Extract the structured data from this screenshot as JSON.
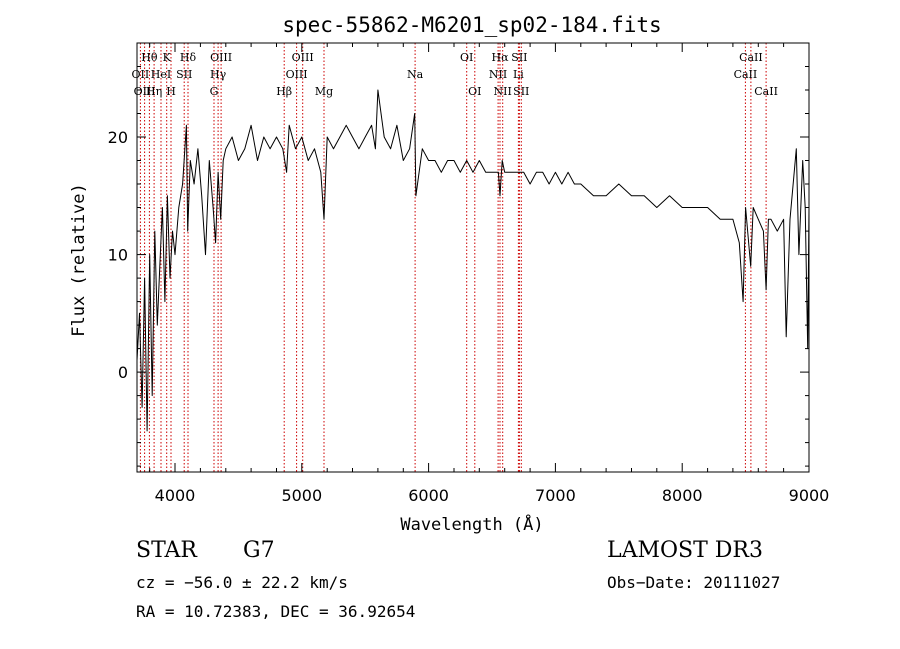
{
  "chart_data": {
    "type": "line",
    "title": "spec-55862-M6201_sp02-184.fits",
    "xlabel": "Wavelength (Å)",
    "ylabel": "Flux (relative)",
    "xlim": [
      3700,
      9000
    ],
    "ylim": [
      -8.5,
      28
    ],
    "x_ticks": [
      4000,
      5000,
      6000,
      7000,
      8000,
      9000
    ],
    "y_ticks": [
      0,
      10,
      20
    ],
    "series": [
      {
        "name": "flux",
        "x": [
          3700,
          3720,
          3740,
          3760,
          3780,
          3800,
          3820,
          3840,
          3860,
          3880,
          3900,
          3920,
          3940,
          3960,
          3980,
          4000,
          4030,
          4060,
          4090,
          4100,
          4120,
          4150,
          4180,
          4210,
          4240,
          4270,
          4300,
          4320,
          4340,
          4360,
          4380,
          4400,
          4450,
          4500,
          4550,
          4600,
          4650,
          4700,
          4750,
          4800,
          4850,
          4880,
          4900,
          4950,
          5000,
          5050,
          5100,
          5150,
          5175,
          5200,
          5250,
          5300,
          5350,
          5400,
          5450,
          5500,
          5550,
          5580,
          5600,
          5650,
          5700,
          5750,
          5800,
          5850,
          5890,
          5900,
          5950,
          6000,
          6050,
          6100,
          6150,
          6200,
          6250,
          6300,
          6350,
          6400,
          6450,
          6500,
          6550,
          6563,
          6580,
          6600,
          6650,
          6700,
          6750,
          6800,
          6850,
          6900,
          6950,
          7000,
          7050,
          7100,
          7150,
          7200,
          7300,
          7400,
          7500,
          7600,
          7700,
          7800,
          7900,
          8000,
          8100,
          8200,
          8300,
          8400,
          8450,
          8480,
          8500,
          8540,
          8560,
          8600,
          8640,
          8662,
          8680,
          8700,
          8750,
          8800,
          8820,
          8850,
          8900,
          8920,
          8950,
          8970,
          8990,
          9000
        ],
        "y": [
          1,
          5,
          -3,
          8,
          -5,
          10,
          -2,
          12,
          4,
          9,
          14,
          6,
          15,
          8,
          12,
          10,
          14,
          16,
          21,
          12,
          18,
          16,
          19,
          15,
          10,
          18,
          14,
          11,
          17,
          13,
          18,
          19,
          20,
          18,
          19,
          21,
          18,
          20,
          19,
          20,
          19,
          17,
          21,
          19,
          20,
          18,
          19,
          17,
          13,
          20,
          19,
          20,
          21,
          20,
          19,
          20,
          21,
          19,
          24,
          20,
          19,
          21,
          18,
          19,
          22,
          15,
          19,
          18,
          18,
          17,
          18,
          18,
          17,
          18,
          17,
          18,
          17,
          17,
          17,
          15,
          18,
          17,
          17,
          17,
          17,
          16,
          17,
          17,
          16,
          17,
          16,
          17,
          16,
          16,
          15,
          15,
          16,
          15,
          15,
          14,
          15,
          14,
          14,
          14,
          13,
          13,
          11,
          6,
          14,
          9,
          14,
          13,
          12,
          7,
          13,
          13,
          12,
          13,
          3,
          13,
          19,
          10,
          18,
          14,
          2,
          14
        ]
      }
    ],
    "line_labels": [
      {
        "text": "Hθ",
        "wavelength": 3798,
        "row": 1
      },
      {
        "text": "OII",
        "wavelength": 3727,
        "row": 2
      },
      {
        "text": "OIII",
        "wavelength": 3760,
        "row": 3
      },
      {
        "text": "Hη",
        "wavelength": 3835,
        "row": 3
      },
      {
        "text": "HeI",
        "wavelength": 3889,
        "row": 2
      },
      {
        "text": "K",
        "wavelength": 3934,
        "row": 1
      },
      {
        "text": "SII",
        "wavelength": 4072,
        "row": 2
      },
      {
        "text": "H",
        "wavelength": 3968,
        "row": 3
      },
      {
        "text": "Hδ",
        "wavelength": 4102,
        "row": 1
      },
      {
        "text": "OIII",
        "wavelength": 4363,
        "row": 1
      },
      {
        "text": "Hγ",
        "wavelength": 4340,
        "row": 2
      },
      {
        "text": "G",
        "wavelength": 4307,
        "row": 3
      },
      {
        "text": "Hβ",
        "wavelength": 4861,
        "row": 3
      },
      {
        "text": "OIII",
        "wavelength": 5007,
        "row": 1
      },
      {
        "text": "OIII",
        "wavelength": 4959,
        "row": 2
      },
      {
        "text": "Mg",
        "wavelength": 5175,
        "row": 3
      },
      {
        "text": "Na",
        "wavelength": 5893,
        "row": 2
      },
      {
        "text": "OI",
        "wavelength": 6300,
        "row": 1
      },
      {
        "text": "OI",
        "wavelength": 6364,
        "row": 3
      },
      {
        "text": "Hα",
        "wavelength": 6563,
        "row": 1
      },
      {
        "text": "SII",
        "wavelength": 6716,
        "row": 1
      },
      {
        "text": "NII",
        "wavelength": 6548,
        "row": 2
      },
      {
        "text": "Li",
        "wavelength": 6708,
        "row": 2
      },
      {
        "text": "NII",
        "wavelength": 6584,
        "row": 3
      },
      {
        "text": "SII",
        "wavelength": 6731,
        "row": 3
      },
      {
        "text": "CaII",
        "wavelength": 8542,
        "row": 1
      },
      {
        "text": "CaII",
        "wavelength": 8498,
        "row": 2
      },
      {
        "text": "CaII",
        "wavelength": 8662,
        "row": 3
      }
    ],
    "marker_color": "#cc0000"
  },
  "info": {
    "object_class": "STAR",
    "subclass": "G7",
    "survey": "LAMOST DR3",
    "redshift_line": "cz = −56.0 ± 22.2 km/s",
    "obs_date": "Obs−Date: 20111027",
    "coords": "RA =  10.72383, DEC =  36.92654"
  }
}
